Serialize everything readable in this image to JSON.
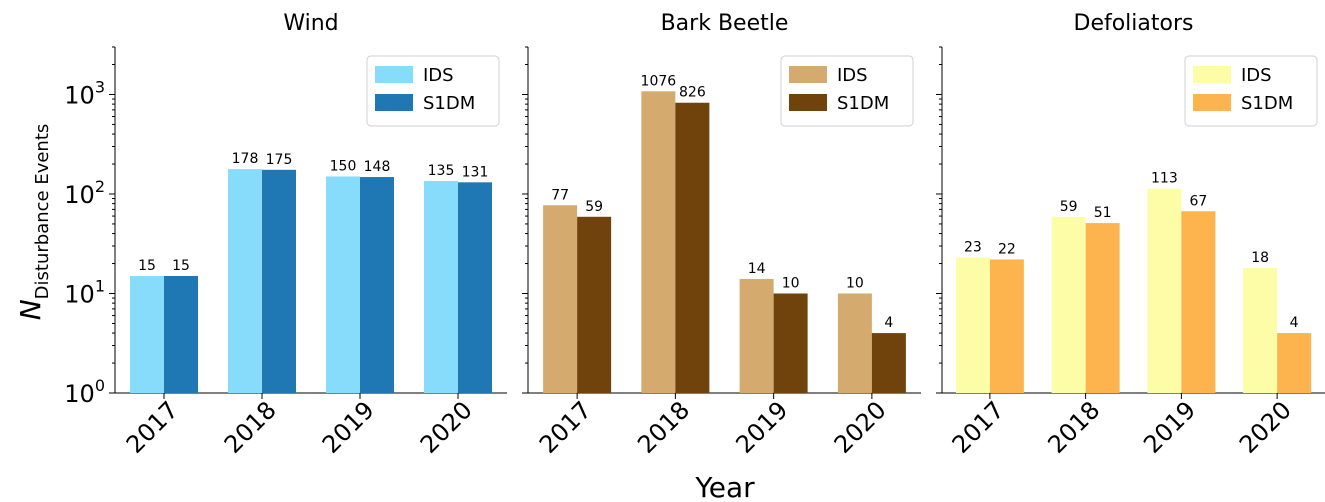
{
  "figure": {
    "ylabel_main": "N",
    "ylabel_sub": "Disturbance Events",
    "xlabel": "Year"
  },
  "chart_data": [
    {
      "type": "bar",
      "title": "Wind",
      "categories": [
        "2017",
        "2018",
        "2019",
        "2020"
      ],
      "series": [
        {
          "name": "IDS",
          "values": [
            15,
            178,
            150,
            135
          ],
          "color": "#87dcfc"
        },
        {
          "name": "S1DM",
          "values": [
            15,
            175,
            148,
            131
          ],
          "color": "#1f77b4"
        }
      ],
      "yscale": "log",
      "ylim": [
        1,
        3000
      ],
      "yticks": [
        1,
        10,
        100,
        1000
      ],
      "ytick_labels": [
        [
          "10",
          "0"
        ],
        [
          "10",
          "1"
        ],
        [
          "10",
          "2"
        ],
        [
          "10",
          "3"
        ]
      ],
      "legend": "top-right"
    },
    {
      "type": "bar",
      "title": "Bark Beetle",
      "categories": [
        "2017",
        "2018",
        "2019",
        "2020"
      ],
      "series": [
        {
          "name": "IDS",
          "values": [
            77,
            1076,
            14,
            10
          ],
          "color": "#d4aa6e"
        },
        {
          "name": "S1DM",
          "values": [
            59,
            826,
            10,
            4
          ],
          "color": "#6f430b"
        }
      ],
      "yscale": "log",
      "ylim": [
        1,
        3000
      ],
      "legend": "top-right"
    },
    {
      "type": "bar",
      "title": "Defoliators",
      "categories": [
        "2017",
        "2018",
        "2019",
        "2020"
      ],
      "series": [
        {
          "name": "IDS",
          "values": [
            23,
            59,
            113,
            18
          ],
          "color": "#fdfda8"
        },
        {
          "name": "S1DM",
          "values": [
            22,
            51,
            67,
            4
          ],
          "color": "#fdb44f"
        }
      ],
      "yscale": "log",
      "ylim": [
        1,
        3000
      ],
      "legend": "top-right"
    }
  ]
}
